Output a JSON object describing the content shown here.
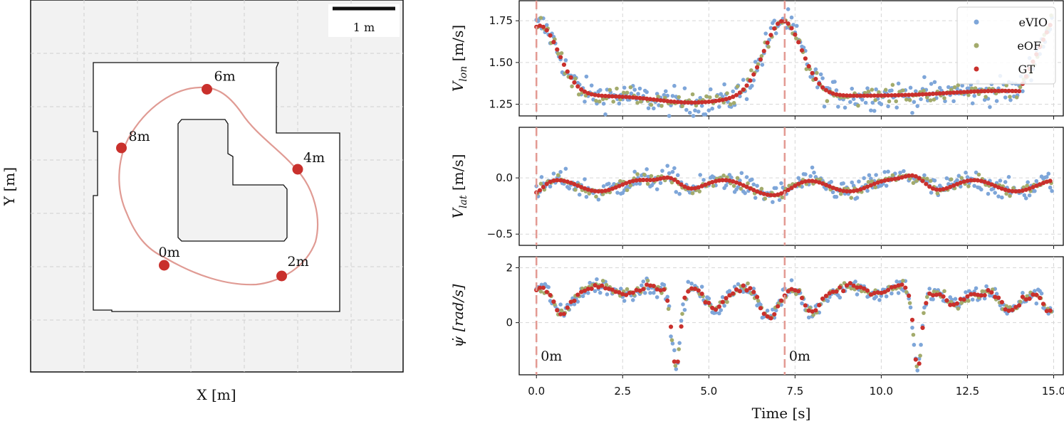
{
  "colors": {
    "eVIO": "#7ea6d9",
    "eOF": "#a3ab6c",
    "GT": "#c9302c",
    "path": "#e09b94",
    "bg": "#f2f2f2"
  },
  "chart_data": [
    {
      "type": "map",
      "xlabel": "X [m]",
      "ylabel": "Y [m]",
      "scale_bar": "1 m",
      "markers": [
        {
          "label": "0m",
          "x": 2.5,
          "y": 2.0
        },
        {
          "label": "2m",
          "x": 4.7,
          "y": 1.8
        },
        {
          "label": "4m",
          "x": 5.0,
          "y": 3.8
        },
        {
          "label": "6m",
          "x": 3.3,
          "y": 5.3
        },
        {
          "label": "8m",
          "x": 1.7,
          "y": 4.2
        }
      ]
    },
    {
      "type": "scatter",
      "ylabel": "V_lon [m/s]",
      "ylim": [
        1.18,
        1.87
      ],
      "yticks": [
        "1.25",
        "1.50",
        "1.75"
      ],
      "legend": [
        "eVIO",
        "eOF",
        "GT"
      ],
      "legend_position": "top-right",
      "vlines": [
        0.0,
        7.2
      ]
    },
    {
      "type": "scatter",
      "ylabel": "V_lat [m/s]",
      "ylim": [
        -0.6,
        0.45
      ],
      "yticks": [
        "0.0",
        "−0.5"
      ],
      "vlines": [
        0.0,
        7.2
      ]
    },
    {
      "type": "scatter",
      "ylabel": "ψ̇ [rad/s]",
      "ylim": [
        -1.9,
        2.4
      ],
      "yticks": [
        "2",
        "0"
      ],
      "vlines": [
        0.0,
        7.2
      ],
      "annotations": [
        "0m",
        "0m"
      ]
    }
  ],
  "shared_x": {
    "xlabel": "Time [s]",
    "xlim": [
      -0.5,
      15.3
    ],
    "xticks": [
      "0.0",
      "2.5",
      "5.0",
      "7.5",
      "10.0",
      "12.5",
      "15.0"
    ]
  }
}
